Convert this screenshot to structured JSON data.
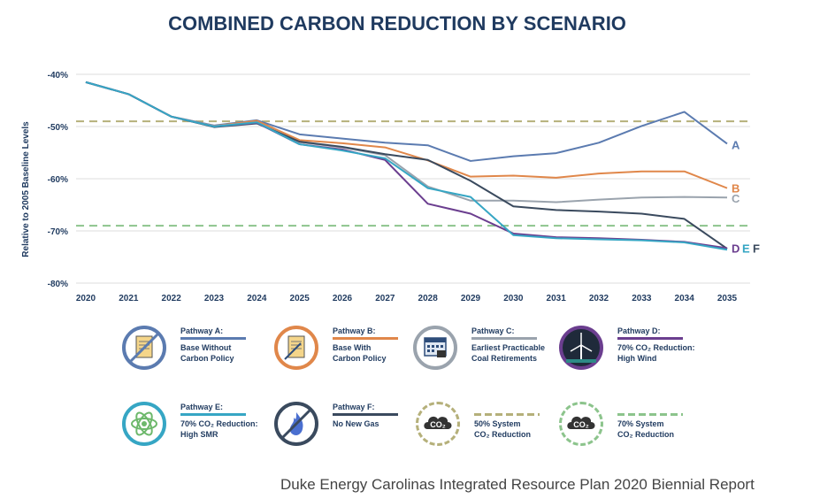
{
  "chart_data": {
    "type": "line",
    "title": "COMBINED CARBON REDUCTION BY SCENARIO",
    "ylabel": "Relative to 2005 Baseline Levels",
    "xlabel": "",
    "ylim": [
      -80,
      -40
    ],
    "yticks": [
      "-40%",
      "-50%",
      "-60%",
      "-70%",
      "-80%"
    ],
    "ytick_values": [
      -40,
      -50,
      -60,
      -70,
      -80
    ],
    "x": [
      "2020",
      "2021",
      "2022",
      "2023",
      "2024",
      "2025",
      "2026",
      "2027",
      "2028",
      "2029",
      "2030",
      "2031",
      "2032",
      "2033",
      "2034",
      "2035"
    ],
    "reference_lines": [
      -49,
      -69
    ],
    "series": [
      {
        "name": "A",
        "color": "#5b7bb0",
        "values": [
          -41.5,
          -43.8,
          -48.1,
          -49.8,
          -48.8,
          -51.5,
          -52.3,
          -53.1,
          -53.6,
          -56.6,
          -55.7,
          -55.1,
          -53.1,
          -49.9,
          -47.2,
          -53.3
        ]
      },
      {
        "name": "B",
        "color": "#e0874a",
        "values": [
          -41.5,
          -43.8,
          -48.1,
          -49.9,
          -48.9,
          -52.6,
          -53.2,
          -54.0,
          -56.5,
          -59.6,
          -59.4,
          -59.8,
          -59.0,
          -58.6,
          -58.6,
          -61.8
        ]
      },
      {
        "name": "C",
        "color": "#9aa3ad",
        "values": [
          -41.5,
          -43.8,
          -48.1,
          -49.9,
          -49.2,
          -53.0,
          -54.0,
          -55.5,
          -61.5,
          -64.2,
          -64.2,
          -64.5,
          -64.0,
          -63.6,
          -63.5,
          -63.6
        ]
      },
      {
        "name": "D",
        "color": "#6b3e8f",
        "values": [
          -41.5,
          -43.8,
          -48.1,
          -50.0,
          -49.3,
          -53.4,
          -54.4,
          -56.4,
          -64.8,
          -66.7,
          -70.5,
          -71.2,
          -71.4,
          -71.7,
          -72.1,
          -73.3
        ]
      },
      {
        "name": "E",
        "color": "#36a6c4",
        "values": [
          -41.5,
          -43.8,
          -48.1,
          -50.0,
          -49.2,
          -53.4,
          -54.6,
          -56.1,
          -61.8,
          -63.5,
          -70.8,
          -71.4,
          -71.6,
          -71.8,
          -72.2,
          -73.6
        ]
      },
      {
        "name": "F",
        "color": "#3a4a5e",
        "values": [
          -41.5,
          -43.8,
          -48.1,
          -50.1,
          -49.4,
          -52.9,
          -53.9,
          -55.3,
          -56.4,
          -60.4,
          -65.3,
          -66.0,
          -66.3,
          -66.7,
          -67.7,
          -73.4
        ]
      }
    ]
  },
  "legend": [
    {
      "title": "Pathway A:",
      "desc": [
        "Base Without",
        "Carbon Policy"
      ],
      "color": "#5b7bb0",
      "icon": "document-crossed-icon"
    },
    {
      "title": "Pathway B:",
      "desc": [
        "Base With",
        "Carbon Policy"
      ],
      "color": "#e0874a",
      "icon": "document-icon"
    },
    {
      "title": "Pathway C:",
      "desc": [
        "Earliest Practicable",
        "Coal Retirements"
      ],
      "color": "#9aa3ad",
      "icon": "calendar-icon"
    },
    {
      "title": "Pathway D:",
      "desc": [
        "70% CO₂ Reduction:",
        "High Wind"
      ],
      "color": "#6b3e8f",
      "icon": "wind-turbine-icon"
    },
    {
      "title": "Pathway E:",
      "desc": [
        "70% CO₂ Reduction:",
        "High SMR"
      ],
      "color": "#36a6c4",
      "icon": "atom-icon"
    },
    {
      "title": "Pathway F:",
      "desc": [
        "No New Gas"
      ],
      "color": "#3a4a5e",
      "icon": "no-gas-flame-icon"
    },
    {
      "title": "",
      "desc": [
        "50% System",
        "CO₂ Reduction"
      ],
      "color": "#b5b07a",
      "icon": "co2-cloud-icon"
    },
    {
      "title": "",
      "desc": [
        "70% System",
        "CO₂ Reduction"
      ],
      "color": "#8cc48c",
      "icon": "co2-cloud-icon"
    }
  ],
  "icon_text": "CO₂",
  "footer": "Duke Energy Carolinas Integrated Resource Plan 2020 Biennial Report"
}
